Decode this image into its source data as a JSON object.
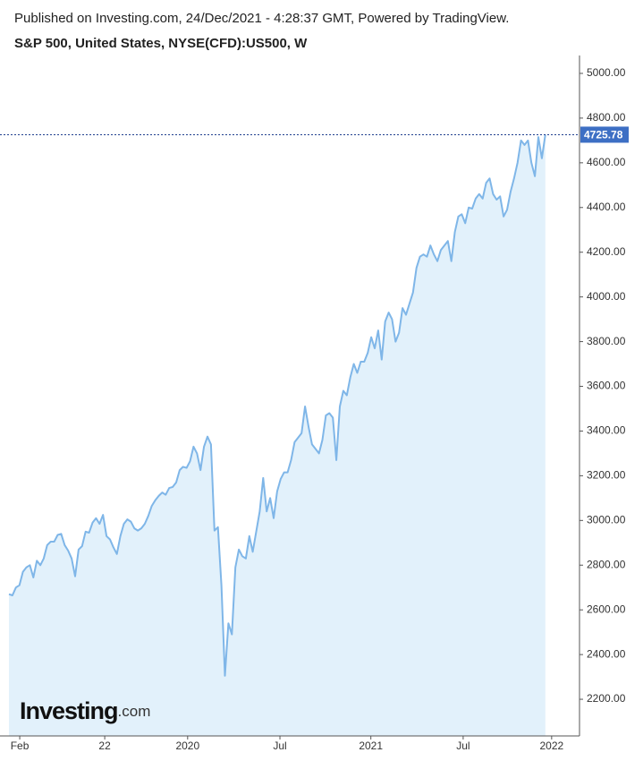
{
  "header": {
    "published": "Published on Investing.com, 24/Dec/2021 - 4:28:37 GMT, Powered by TradingView.",
    "symbol": "S&P 500, United States, NYSE(CFD):US500, W"
  },
  "logo": {
    "name": "Investing",
    "suffix": ".com"
  },
  "chart_data": {
    "type": "area",
    "color": "#7fb6e8",
    "fill": "#e2f1fb",
    "values": [
      2670,
      2665,
      2700,
      2710,
      2770,
      2790,
      2800,
      2745,
      2820,
      2800,
      2830,
      2890,
      2905,
      2905,
      2935,
      2940,
      2890,
      2865,
      2830,
      2750,
      2870,
      2885,
      2950,
      2945,
      2990,
      3010,
      2985,
      3025,
      2930,
      2915,
      2880,
      2850,
      2930,
      2985,
      3005,
      2995,
      2965,
      2955,
      2965,
      2985,
      3020,
      3065,
      3090,
      3110,
      3125,
      3115,
      3145,
      3150,
      3170,
      3225,
      3240,
      3235,
      3265,
      3330,
      3300,
      3225,
      3330,
      3375,
      3340,
      2955,
      2970,
      2710,
      2305,
      2540,
      2490,
      2790,
      2870,
      2840,
      2830,
      2930,
      2860,
      2950,
      3040,
      3190,
      3040,
      3100,
      3010,
      3130,
      3185,
      3215,
      3215,
      3270,
      3350,
      3370,
      3390,
      3510,
      3420,
      3340,
      3320,
      3300,
      3360,
      3470,
      3480,
      3460,
      3270,
      3510,
      3580,
      3560,
      3640,
      3700,
      3660,
      3710,
      3710,
      3750,
      3820,
      3770,
      3850,
      3720,
      3890,
      3930,
      3900,
      3800,
      3840,
      3950,
      3920,
      3970,
      4020,
      4130,
      4180,
      4190,
      4180,
      4230,
      4190,
      4160,
      4210,
      4230,
      4250,
      4160,
      4290,
      4360,
      4370,
      4330,
      4400,
      4395,
      4440,
      4460,
      4440,
      4510,
      4530,
      4460,
      4435,
      4450,
      4360,
      4390,
      4470,
      4530,
      4600,
      4700,
      4680,
      4700,
      4600,
      4540,
      4715,
      4620,
      4725.78
    ],
    "last_value": 4725.78,
    "xlim": [
      0,
      163.8
    ],
    "xticks": [
      {
        "value": 3.1,
        "label": "Feb"
      },
      {
        "value": 27.5,
        "label": "22"
      },
      {
        "value": 51.3,
        "label": "2020"
      },
      {
        "value": 77.8,
        "label": "Jul"
      },
      {
        "value": 103.9,
        "label": "2021"
      },
      {
        "value": 130.4,
        "label": "Jul"
      },
      {
        "value": 155.8,
        "label": "2022"
      }
    ],
    "ylim": [
      2036,
      5080
    ],
    "yticks": [
      {
        "value": 2200,
        "label": "2200.00"
      },
      {
        "value": 2400,
        "label": "2400.00"
      },
      {
        "value": 2600,
        "label": "2600.00"
      },
      {
        "value": 2800,
        "label": "2800.00"
      },
      {
        "value": 3000,
        "label": "3000.00"
      },
      {
        "value": 3200,
        "label": "3200.00"
      },
      {
        "value": 3400,
        "label": "3400.00"
      },
      {
        "value": 3600,
        "label": "3600.00"
      },
      {
        "value": 3800,
        "label": "3800.00"
      },
      {
        "value": 4000,
        "label": "4000.00"
      },
      {
        "value": 4200,
        "label": "4200.00"
      },
      {
        "value": 4400,
        "label": "4400.00"
      },
      {
        "value": 4600,
        "label": "4600.00"
      },
      {
        "value": 4800,
        "label": "4800.00"
      },
      {
        "value": 5000,
        "label": "5000.00"
      }
    ]
  }
}
